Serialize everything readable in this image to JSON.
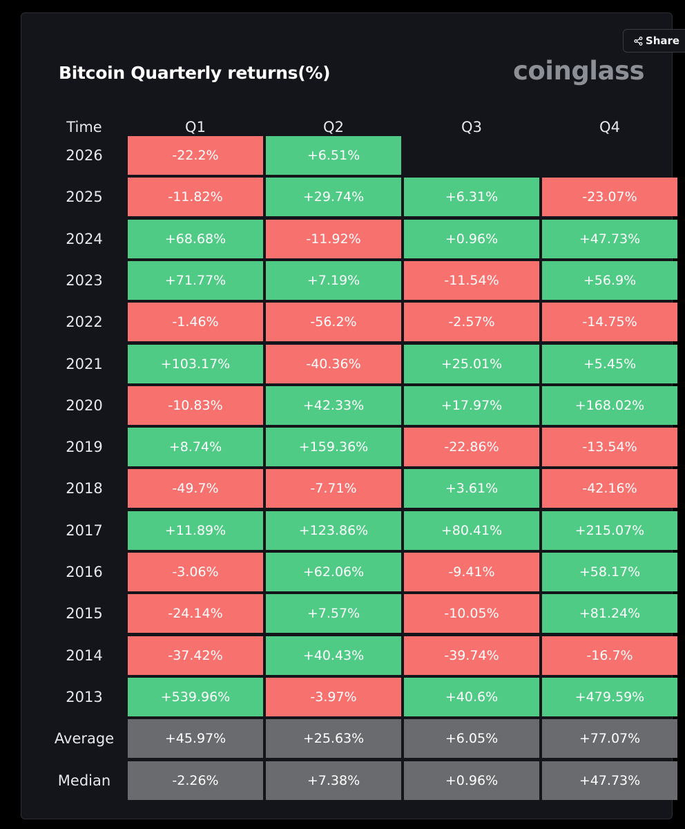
{
  "header": {
    "share_label": "Share",
    "title": "Bitcoin Quarterly returns(%)",
    "logo_text": "coinglass"
  },
  "table": {
    "columns": [
      "Time",
      "Q1",
      "Q2",
      "Q3",
      "Q4"
    ],
    "rows": [
      {
        "time": "2026",
        "values": [
          "-22.2%",
          "+6.51%",
          "",
          ""
        ]
      },
      {
        "time": "2025",
        "values": [
          "-11.82%",
          "+29.74%",
          "+6.31%",
          "-23.07%"
        ]
      },
      {
        "time": "2024",
        "values": [
          "+68.68%",
          "-11.92%",
          "+0.96%",
          "+47.73%"
        ]
      },
      {
        "time": "2023",
        "values": [
          "+71.77%",
          "+7.19%",
          "-11.54%",
          "+56.9%"
        ]
      },
      {
        "time": "2022",
        "values": [
          "-1.46%",
          "-56.2%",
          "-2.57%",
          "-14.75%"
        ]
      },
      {
        "time": "2021",
        "values": [
          "+103.17%",
          "-40.36%",
          "+25.01%",
          "+5.45%"
        ]
      },
      {
        "time": "2020",
        "values": [
          "-10.83%",
          "+42.33%",
          "+17.97%",
          "+168.02%"
        ]
      },
      {
        "time": "2019",
        "values": [
          "+8.74%",
          "+159.36%",
          "-22.86%",
          "-13.54%"
        ]
      },
      {
        "time": "2018",
        "values": [
          "-49.7%",
          "-7.71%",
          "+3.61%",
          "-42.16%"
        ]
      },
      {
        "time": "2017",
        "values": [
          "+11.89%",
          "+123.86%",
          "+80.41%",
          "+215.07%"
        ]
      },
      {
        "time": "2016",
        "values": [
          "-3.06%",
          "+62.06%",
          "-9.41%",
          "+58.17%"
        ]
      },
      {
        "time": "2015",
        "values": [
          "-24.14%",
          "+7.57%",
          "-10.05%",
          "+81.24%"
        ]
      },
      {
        "time": "2014",
        "values": [
          "-37.42%",
          "+40.43%",
          "-39.74%",
          "-16.7%"
        ]
      },
      {
        "time": "2013",
        "values": [
          "+539.96%",
          "-3.97%",
          "+40.6%",
          "+479.59%"
        ]
      },
      {
        "time": "Average",
        "values": [
          "+45.97%",
          "+25.63%",
          "+6.05%",
          "+77.07%"
        ],
        "stat": true
      },
      {
        "time": "Median",
        "values": [
          "-2.26%",
          "+7.38%",
          "+0.96%",
          "+47.73%"
        ],
        "stat": true
      }
    ]
  },
  "colors": {
    "positive": "#4fcb85",
    "negative": "#f7716f",
    "stat": "#6a6b6e",
    "background": "#14151a"
  },
  "icons": {
    "share": "share-icon"
  }
}
